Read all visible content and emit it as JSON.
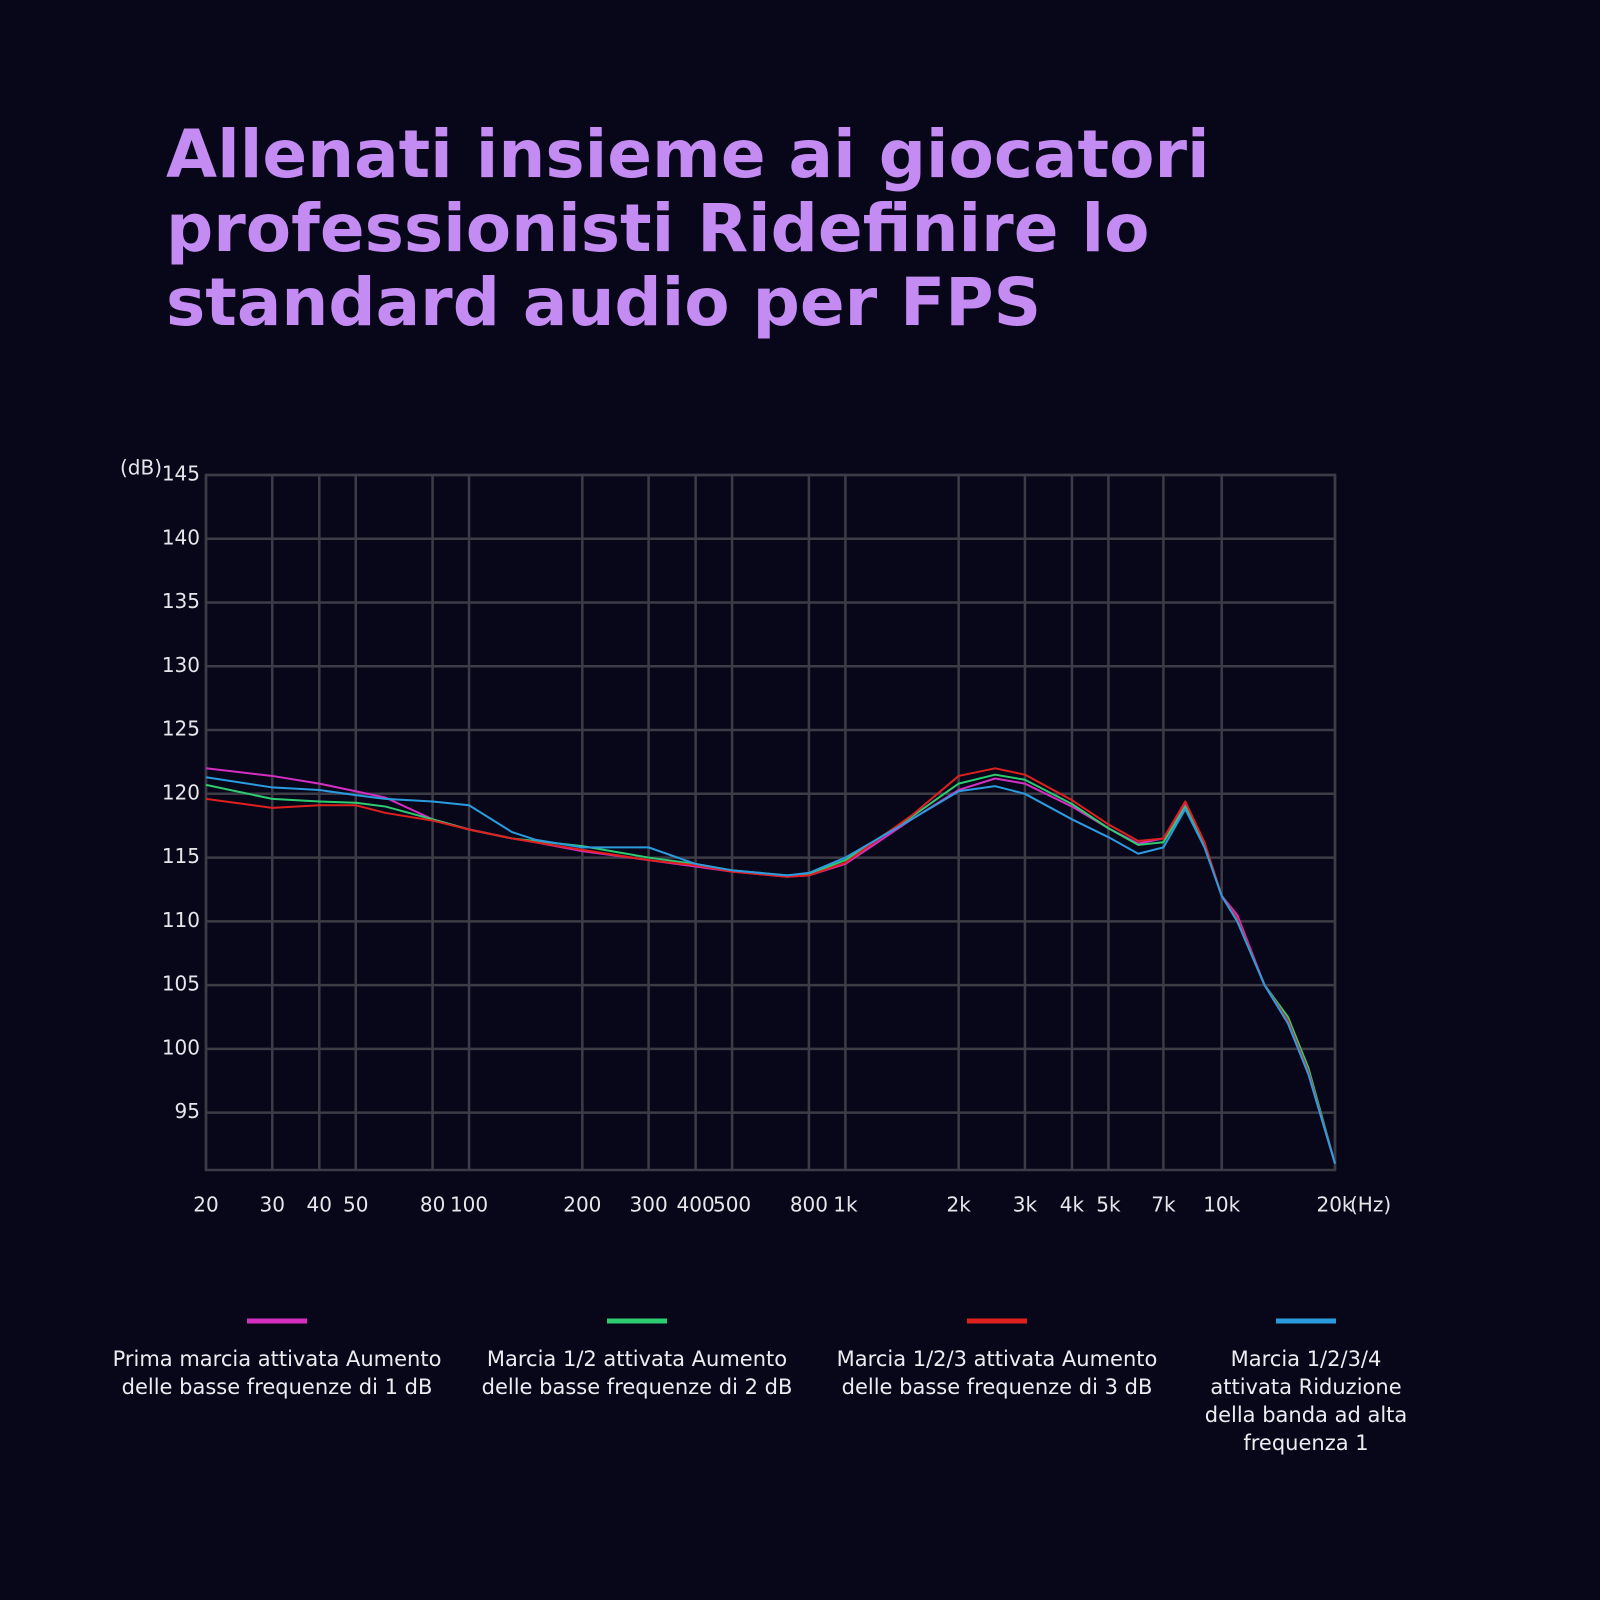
{
  "chart_data": {
    "type": "line",
    "title": "Allenati insieme ai giocatori professionisti Ridefinire lo standard audio per FPS",
    "x_label": "(Hz)",
    "y_label": "(dB)",
    "log_x": true,
    "grid": true,
    "xlim": [
      20,
      20000
    ],
    "xticks": [
      20,
      30,
      40,
      50,
      80,
      100,
      200,
      300,
      400,
      500,
      800,
      {
        "value": 1000,
        "label": "1k"
      },
      {
        "value": 2000,
        "label": "2k"
      },
      {
        "value": 3000,
        "label": "3k"
      },
      {
        "value": 4000,
        "label": "4k"
      },
      {
        "value": 5000,
        "label": "5k"
      },
      {
        "value": 7000,
        "label": "7k"
      },
      {
        "value": 10000,
        "label": "10k"
      },
      {
        "value": 20000,
        "label": "20k"
      }
    ],
    "ylim": [
      90.5,
      145
    ],
    "yticks": [
      95,
      100,
      105,
      110,
      115,
      120,
      125,
      130,
      135,
      140,
      145
    ],
    "x": [
      20,
      30,
      40,
      50,
      60,
      80,
      100,
      130,
      150,
      200,
      300,
      400,
      500,
      700,
      800,
      1000,
      1500,
      2000,
      2500,
      3000,
      4000,
      5000,
      6000,
      7000,
      8000,
      9000,
      10000,
      11000,
      13000,
      15000,
      17000,
      20000
    ],
    "series": [
      {
        "name": "Prima marcia attivata Aumento delle basse frequenze di 1 dB",
        "color": "#d52fc2",
        "values": [
          122,
          121.4,
          120.8,
          120.2,
          119.7,
          118,
          117.2,
          116.5,
          116.2,
          115.5,
          114.8,
          114.3,
          113.9,
          113.5,
          113.6,
          114.5,
          118,
          120.3,
          121.2,
          120.8,
          119,
          117.3,
          116.1,
          116.5,
          119.2,
          116,
          112,
          110.5,
          105,
          102,
          98,
          91
        ]
      },
      {
        "name": "Marcia 1/2 attivata Aumento delle basse frequenze di 2 dB",
        "color": "#2ecc71",
        "values": [
          120.7,
          119.6,
          119.4,
          119.3,
          119,
          118,
          117.2,
          116.5,
          116.3,
          115.9,
          115,
          114.5,
          114,
          113.6,
          113.7,
          114.8,
          118.2,
          120.8,
          121.5,
          121.1,
          119.2,
          117.3,
          116,
          116.2,
          119,
          116,
          112,
          110,
          105,
          102.5,
          98.5,
          91
        ]
      },
      {
        "name": "Marcia 1/2/3 attivata Aumento delle basse frequenze di 3 dB",
        "color": "#e0201e",
        "values": [
          119.6,
          118.9,
          119.1,
          119.1,
          118.5,
          117.9,
          117.2,
          116.5,
          116.2,
          115.6,
          114.8,
          114.4,
          113.9,
          113.5,
          113.6,
          114.6,
          118.3,
          121.4,
          122,
          121.5,
          119.5,
          117.6,
          116.3,
          116.5,
          119.4,
          116.2,
          112,
          110.2,
          105,
          102.2,
          98.2,
          91
        ]
      },
      {
        "name": "Marcia 1/2/3/4 attivata Riduzione della banda ad alta frequenza 1",
        "color": "#2b9be0",
        "values": [
          121.3,
          120.5,
          120.3,
          119.9,
          119.6,
          119.4,
          119.1,
          117,
          116.4,
          115.8,
          115.8,
          114.5,
          114,
          113.6,
          113.8,
          115,
          118,
          120.2,
          120.6,
          120,
          118,
          116.6,
          115.3,
          115.8,
          118.8,
          115.8,
          112,
          110,
          105,
          102,
          98,
          91
        ]
      }
    ]
  }
}
